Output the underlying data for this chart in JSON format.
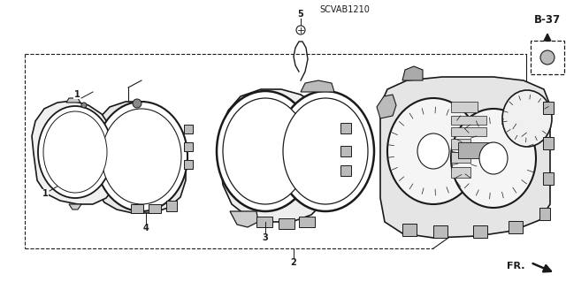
{
  "background_color": "#ffffff",
  "line_color": "#1a1a1a",
  "fig_width": 6.4,
  "fig_height": 3.19,
  "dpi": 100,
  "footnote": "SCVAB1210",
  "fr_label": "FR.",
  "page_label": "B-37"
}
